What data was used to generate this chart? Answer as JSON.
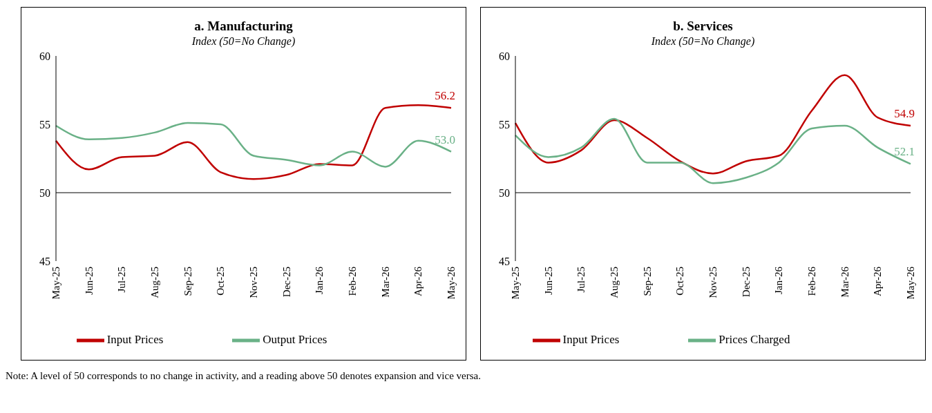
{
  "chart_data": [
    {
      "type": "line",
      "title": "a. Manufacturing",
      "subtitle": "Index (50=No Change)",
      "categories": [
        "May-25",
        "Jun-25",
        "Jul-25",
        "Aug-25",
        "Sep-25",
        "Oct-25",
        "Nov-25",
        "Dec-25",
        "Jan-26",
        "Feb-26",
        "Mar-26",
        "Apr-26",
        "May-26"
      ],
      "series": [
        {
          "name": "Input Prices",
          "color": "#c00000",
          "values": [
            53.8,
            51.7,
            52.6,
            52.7,
            53.7,
            51.5,
            51.0,
            51.3,
            52.1,
            52.0,
            56.2,
            56.4,
            56.2
          ],
          "value_labels": [
            null,
            null,
            null,
            null,
            null,
            null,
            null,
            null,
            null,
            null,
            null,
            null,
            "56.2"
          ]
        },
        {
          "name": "Output Prices",
          "color": "#6ab187",
          "values": [
            54.9,
            53.9,
            54.0,
            54.4,
            55.1,
            55.0,
            52.7,
            52.4,
            52.0,
            53.0,
            51.9,
            53.8,
            53.0
          ],
          "value_labels": [
            null,
            null,
            null,
            null,
            null,
            null,
            null,
            null,
            null,
            null,
            null,
            null,
            "53.0"
          ]
        }
      ],
      "ylim": [
        45,
        60
      ],
      "yticks": [
        45,
        50,
        55,
        60
      ],
      "ref_lines": [
        {
          "axis": "y",
          "value": 50,
          "color": "#000000"
        }
      ],
      "grid": false,
      "legend": "bottom",
      "marker": "none",
      "line_style": "solid",
      "annotations": [
        "Note: A level of 50 corresponds to no change in activity, and a reading above 50 denotes expansion and vice versa."
      ]
    },
    {
      "type": "line",
      "title": "b. Services",
      "subtitle": "Index (50=No Change)",
      "categories": [
        "May-25",
        "Jun-25",
        "Jul-25",
        "Aug-25",
        "Sep-25",
        "Oct-25",
        "Nov-25",
        "Dec-25",
        "Jan-26",
        "Feb-26",
        "Mar-26",
        "Apr-26",
        "May-26"
      ],
      "series": [
        {
          "name": "Input Prices",
          "color": "#c00000",
          "values": [
            55.1,
            52.2,
            53.1,
            55.3,
            54.0,
            52.3,
            51.4,
            52.3,
            52.7,
            56.0,
            58.6,
            55.5,
            54.9
          ],
          "value_labels": [
            null,
            null,
            null,
            null,
            null,
            null,
            null,
            null,
            null,
            null,
            null,
            null,
            "54.9"
          ]
        },
        {
          "name": "Prices Charged",
          "color": "#6ab187",
          "values": [
            54.2,
            52.6,
            53.3,
            55.4,
            52.2,
            52.2,
            50.7,
            51.1,
            52.2,
            54.7,
            54.9,
            53.3,
            52.1
          ],
          "value_labels": [
            null,
            null,
            null,
            null,
            null,
            null,
            null,
            null,
            null,
            null,
            null,
            null,
            "52.1"
          ]
        }
      ],
      "ylim": [
        45,
        60
      ],
      "yticks": [
        45,
        50,
        55,
        60
      ],
      "ref_lines": [
        {
          "axis": "y",
          "value": 50,
          "color": "#000000"
        }
      ],
      "grid": false,
      "legend": "bottom",
      "marker": "none",
      "line_style": "solid"
    }
  ]
}
